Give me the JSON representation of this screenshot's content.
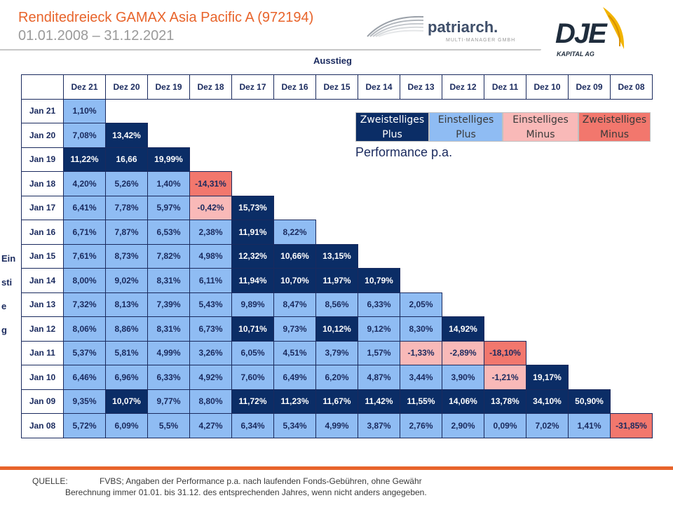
{
  "header": {
    "title": "Renditedreieck GAMAX Asia Pacific A (972194)",
    "subtitle": "01.01.2008 – 31.12.2021",
    "patriarch_name": "patriarch.",
    "patriarch_sub": "MULTI-MANAGER GMBH",
    "dje_name": "DJE",
    "dje_sub": "KAPITAL AG"
  },
  "axis": {
    "exit_label": "Ausstieg",
    "entry_label_line1": "Einstie",
    "entry_label_line2": "g"
  },
  "columns": [
    "Dez 21",
    "Dez 20",
    "Dez 19",
    "Dez 18",
    "Dez 17",
    "Dez 16",
    "Dez 15",
    "Dez 14",
    "Dez 13",
    "Dez 12",
    "Dez 11",
    "Dez 10",
    "Dez 09",
    "Dez 08"
  ],
  "rows": [
    {
      "label": "Jan 21",
      "cells": [
        [
          "1,10%",
          "p1"
        ]
      ]
    },
    {
      "label": "Jan 20",
      "cells": [
        [
          "7,08%",
          "p1"
        ],
        [
          "13,42%",
          "p2"
        ]
      ]
    },
    {
      "label": "Jan 19",
      "cells": [
        [
          "11,22%",
          "p2"
        ],
        [
          "16,66",
          "p2"
        ],
        [
          "19,99%",
          "p2"
        ]
      ]
    },
    {
      "label": "Jan 18",
      "cells": [
        [
          "4,20%",
          "p1"
        ],
        [
          "5,26%",
          "p1"
        ],
        [
          "1,40%",
          "p1"
        ],
        [
          "-14,31%",
          "m2"
        ]
      ]
    },
    {
      "label": "Jan 17",
      "cells": [
        [
          "6,41%",
          "p1"
        ],
        [
          "7,78%",
          "p1"
        ],
        [
          "5,97%",
          "p1"
        ],
        [
          "-0,42%",
          "m1"
        ],
        [
          "15,73%",
          "p2"
        ]
      ]
    },
    {
      "label": "Jan 16",
      "cells": [
        [
          "6,71%",
          "p1"
        ],
        [
          "7,87%",
          "p1"
        ],
        [
          "6,53%",
          "p1"
        ],
        [
          "2,38%",
          "p1"
        ],
        [
          "11,91%",
          "p2"
        ],
        [
          "8,22%",
          "p1"
        ]
      ]
    },
    {
      "label": "Jan 15",
      "cells": [
        [
          "7,61%",
          "p1"
        ],
        [
          "8,73%",
          "p1"
        ],
        [
          "7,82%",
          "p1"
        ],
        [
          "4,98%",
          "p1"
        ],
        [
          "12,32%",
          "p2"
        ],
        [
          "10,66%",
          "p2"
        ],
        [
          "13,15%",
          "p2"
        ]
      ]
    },
    {
      "label": "Jan 14",
      "cells": [
        [
          "8,00%",
          "p1"
        ],
        [
          "9,02%",
          "p1"
        ],
        [
          "8,31%",
          "p1"
        ],
        [
          "6,11%",
          "p1"
        ],
        [
          "11,94%",
          "p2"
        ],
        [
          "10,70%",
          "p2"
        ],
        [
          "11,97%",
          "p2"
        ],
        [
          "10,79%",
          "p2"
        ]
      ]
    },
    {
      "label": "Jan 13",
      "cells": [
        [
          "7,32%",
          "p1"
        ],
        [
          "8,13%",
          "p1"
        ],
        [
          "7,39%",
          "p1"
        ],
        [
          "5,43%",
          "p1"
        ],
        [
          "9,89%",
          "p1"
        ],
        [
          "8,47%",
          "p1"
        ],
        [
          "8,56%",
          "p1"
        ],
        [
          "6,33%",
          "p1"
        ],
        [
          "2,05%",
          "p1"
        ]
      ]
    },
    {
      "label": "Jan 12",
      "cells": [
        [
          "8,06%",
          "p1"
        ],
        [
          "8,86%",
          "p1"
        ],
        [
          "8,31%",
          "p1"
        ],
        [
          "6,73%",
          "p1"
        ],
        [
          "10,71%",
          "p2"
        ],
        [
          "9,73%",
          "p1"
        ],
        [
          "10,12%",
          "p2"
        ],
        [
          "9,12%",
          "p1"
        ],
        [
          "8,30%",
          "p1"
        ],
        [
          "14,92%",
          "p2"
        ]
      ]
    },
    {
      "label": "Jan 11",
      "cells": [
        [
          "5,37%",
          "p1"
        ],
        [
          "5,81%",
          "p1"
        ],
        [
          "4,99%",
          "p1"
        ],
        [
          "3,26%",
          "p1"
        ],
        [
          "6,05%",
          "p1"
        ],
        [
          "4,51%",
          "p1"
        ],
        [
          "3,79%",
          "p1"
        ],
        [
          "1,57%",
          "p1"
        ],
        [
          "-1,33%",
          "m1"
        ],
        [
          "-2,89%",
          "m1"
        ],
        [
          "-18,10%",
          "m2"
        ]
      ]
    },
    {
      "label": "Jan 10",
      "cells": [
        [
          "6,46%",
          "p1"
        ],
        [
          "6,96%",
          "p1"
        ],
        [
          "6,33%",
          "p1"
        ],
        [
          "4,92%",
          "p1"
        ],
        [
          "7,60%",
          "p1"
        ],
        [
          "6,49%",
          "p1"
        ],
        [
          "6,20%",
          "p1"
        ],
        [
          "4,87%",
          "p1"
        ],
        [
          "3,44%",
          "p1"
        ],
        [
          "3,90%",
          "p1"
        ],
        [
          "-1,21%",
          "m1"
        ],
        [
          "19,17%",
          "p2"
        ]
      ]
    },
    {
      "label": "Jan 09",
      "cells": [
        [
          "9,35%",
          "p1"
        ],
        [
          "10,07%",
          "p2"
        ],
        [
          "9,77%",
          "p1"
        ],
        [
          "8,80%",
          "p1"
        ],
        [
          "11,72%",
          "p2"
        ],
        [
          "11,23%",
          "p2"
        ],
        [
          "11,67%",
          "p2"
        ],
        [
          "11,42%",
          "p2"
        ],
        [
          "11,55%",
          "p2"
        ],
        [
          "14,06%",
          "p2"
        ],
        [
          "13,78%",
          "p2"
        ],
        [
          "34,10%",
          "p2"
        ],
        [
          "50,90%",
          "p2"
        ]
      ]
    },
    {
      "label": "Jan 08",
      "cells": [
        [
          "5,72%",
          "p1"
        ],
        [
          "6,09%",
          "p1"
        ],
        [
          "5,5%",
          "p1"
        ],
        [
          "4,27%",
          "p1"
        ],
        [
          "6,34%",
          "p1"
        ],
        [
          "5,34%",
          "p1"
        ],
        [
          "4,99%",
          "p1"
        ],
        [
          "3,87%",
          "p1"
        ],
        [
          "2,76%",
          "p1"
        ],
        [
          "2,90%",
          "p1"
        ],
        [
          "0,09%",
          "p1"
        ],
        [
          "7,02%",
          "p1"
        ],
        [
          "1,41%",
          "p1"
        ],
        [
          "-31,85%",
          "m2"
        ]
      ]
    }
  ],
  "legend": {
    "plus2": [
      "Zweistelliges",
      "Plus"
    ],
    "plus1": [
      "Einstelliges",
      "Plus"
    ],
    "min1": [
      "Einstelliges",
      "Minus"
    ],
    "min2": [
      "Zweistelliges",
      "Minus"
    ]
  },
  "performance_label": "Performance p.a.",
  "colors": {
    "plus2": "#0b2d66",
    "plus1": "#8fbcf3",
    "min1": "#f9b9b8",
    "min2": "#f2776d",
    "accent": "#e8642b"
  },
  "footer": {
    "source_label": "QUELLE:",
    "source_text": "FVBS; Angaben der Performance p.a. nach laufenden Fonds-Gebühren, ohne Gewähr",
    "source_text2": "Berechnung immer  01.01. bis 31.12. des entsprechenden Jahres, wenn nicht anders angegeben."
  }
}
